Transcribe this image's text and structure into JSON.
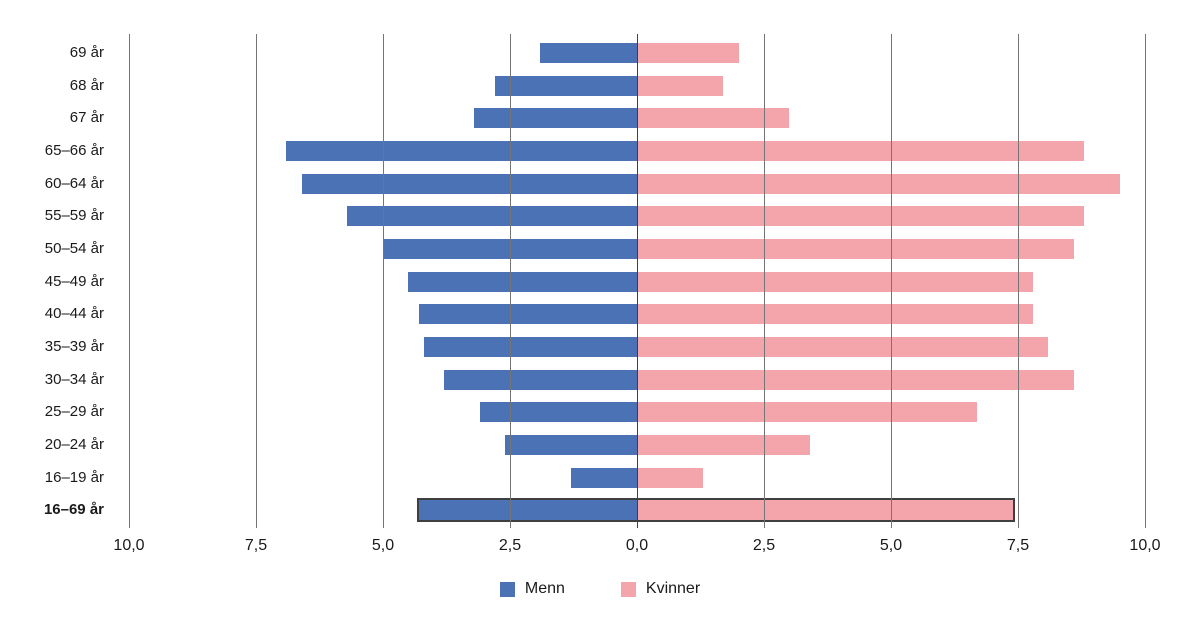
{
  "chart_data": {
    "type": "bar",
    "variant": "diverging-horizontal-pyramid",
    "categories": [
      "69 år",
      "68 år",
      "67 år",
      "65–66 år",
      "60–64 år",
      "55–59 år",
      "50–54 år",
      "45–49 år",
      "40–44 år",
      "35–39 år",
      "30–34 år",
      "25–29 år",
      "20–24 år",
      "16–19 år",
      "16–69 år"
    ],
    "series": [
      {
        "name": "Menn",
        "side": "left",
        "color": "#4A72B5",
        "values": [
          1.9,
          2.8,
          3.2,
          6.9,
          6.6,
          5.7,
          5.0,
          4.5,
          4.3,
          4.2,
          3.8,
          3.1,
          2.6,
          1.3,
          4.3
        ]
      },
      {
        "name": "Kvinner",
        "side": "right",
        "color": "#F3A5AB",
        "values": [
          2.0,
          1.7,
          3.0,
          8.8,
          9.5,
          8.8,
          8.6,
          7.8,
          7.8,
          8.1,
          8.6,
          6.7,
          3.4,
          1.3,
          7.4
        ]
      }
    ],
    "total_row": {
      "label": "16–69 år",
      "outlined": true,
      "bold_label": true,
      "outline_color": "#3F3F3F"
    },
    "x_axis": {
      "tick_labels": [
        "10,0",
        "7,5",
        "5,0",
        "2,5",
        "0,0",
        "2,5",
        "5,0",
        "7,5",
        "10,0"
      ],
      "tick_values_abs": [
        10.0,
        7.5,
        5.0,
        2.5,
        0.0,
        2.5,
        5.0,
        7.5,
        10.0
      ],
      "max_each_side": 10.0,
      "tick_step": 2.5,
      "decimal_separator": ","
    },
    "grid": true,
    "gridline_color": "#757575",
    "center_axis_color": "#3F3F3F",
    "legend": {
      "position": "bottom",
      "entries": [
        {
          "label": "Menn",
          "color": "#4A72B5"
        },
        {
          "label": "Kvinner",
          "color": "#F3A5AB"
        }
      ]
    }
  },
  "colors": {
    "background": "#FFFFFF",
    "text": "#1A1A1A",
    "menn_blue": "#4A72B5",
    "kvinner_pink": "#F3A5AB"
  }
}
